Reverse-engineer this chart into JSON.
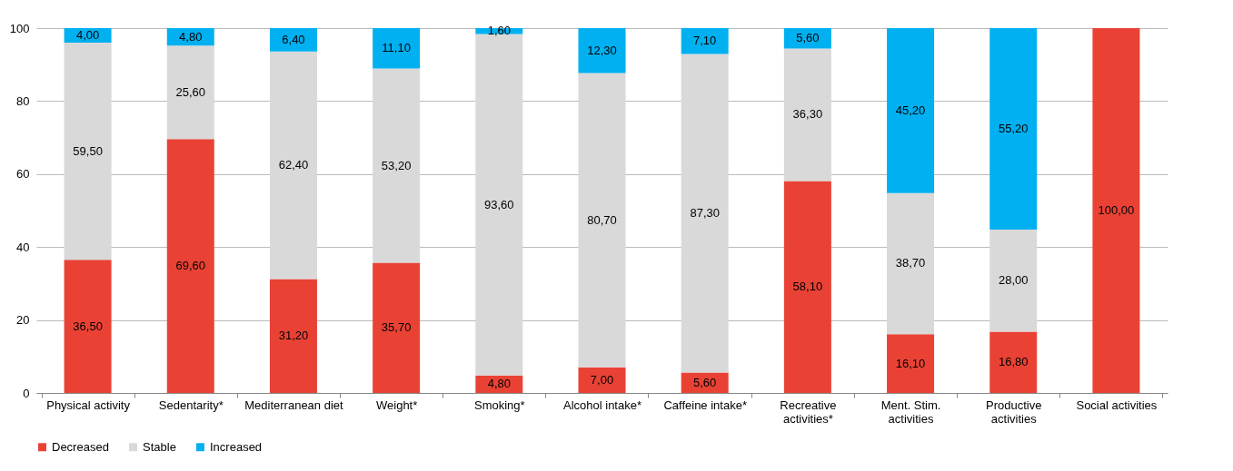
{
  "chart_data": {
    "type": "bar",
    "stacked": true,
    "categories": [
      "Physical activity",
      "Sedentarity*",
      "Mediterranean diet",
      "Weight*",
      "Smoking*",
      "Alcohol intake*",
      "Caffeine intake*",
      "Recreative activities*",
      "Ment. Stim. activities",
      "Productive activities",
      "Social activities"
    ],
    "series": [
      {
        "name": "Decreased",
        "color": "#e94235",
        "values": [
          36.5,
          69.6,
          31.2,
          35.7,
          4.8,
          7.0,
          5.6,
          58.1,
          16.1,
          16.8,
          100.0
        ],
        "value_labels": [
          "36,50",
          "69,60",
          "31,20",
          "35,70",
          "4,80",
          "7,00",
          "5,60",
          "58,10",
          "16,10",
          "16,80",
          "100,00"
        ]
      },
      {
        "name": "Stable",
        "color": "#d9d9d9",
        "values": [
          59.5,
          25.6,
          62.4,
          53.2,
          93.6,
          80.7,
          87.3,
          36.3,
          38.7,
          28.0,
          null
        ],
        "value_labels": [
          "59,50",
          "25,60",
          "62,40",
          "53,20",
          "93,60",
          "80,70",
          "87,30",
          "36,30",
          "38,70",
          "28,00",
          null
        ]
      },
      {
        "name": "Increased",
        "color": "#00b0f0",
        "values": [
          4.0,
          4.8,
          6.4,
          11.1,
          1.6,
          12.3,
          7.1,
          5.6,
          45.2,
          55.2,
          null
        ],
        "value_labels": [
          "4,00",
          "4,80",
          "6,40",
          "11,10",
          "1,60",
          "12,30",
          "7,10",
          "5,60",
          "45,20",
          "55,20",
          null
        ]
      }
    ],
    "ylim": [
      0,
      100
    ],
    "yticks": [
      0,
      20,
      40,
      60,
      80,
      100
    ],
    "grid": "y",
    "legend": "bottom"
  }
}
